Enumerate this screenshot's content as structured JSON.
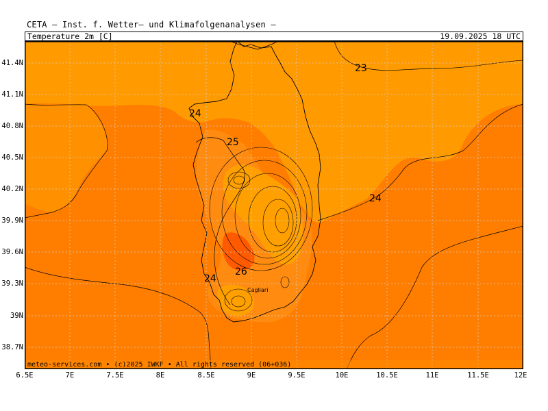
{
  "header": {
    "title": "CETA — Inst. f. Wetter— und Klimafolgenanalysen —",
    "variable": "Temperature_2m_[C]",
    "timestamp": "19.09.2025 18 UTC"
  },
  "map": {
    "region": "Sardinia",
    "lat_labels": [
      "41.4N",
      "41.1N",
      "40.8N",
      "40.5N",
      "40.2N",
      "39.9N",
      "39.6N",
      "39.3N",
      "39N",
      "38.7N"
    ],
    "lon_labels": [
      "6.5E",
      "7E",
      "7.5E",
      "8E",
      "8.5E",
      "9E",
      "9.5E",
      "10E",
      "10.5E",
      "11E",
      "11.5E",
      "12E"
    ],
    "contour_labels": [
      {
        "text": "23"
      },
      {
        "text": "24"
      },
      {
        "text": "24"
      },
      {
        "text": "25"
      },
      {
        "text": "26"
      },
      {
        "text": "24"
      }
    ],
    "city": "Cagliari",
    "colors": {
      "t23": "#ff9a00",
      "t24": "#ff7e00",
      "t25": "#ff8a10",
      "t26": "#ff5a00",
      "inland_warm": "#ffa000"
    }
  },
  "footer": {
    "credit": "meteo-services.com • (c)2025 IWKF • All rights reserved (06+036)"
  }
}
